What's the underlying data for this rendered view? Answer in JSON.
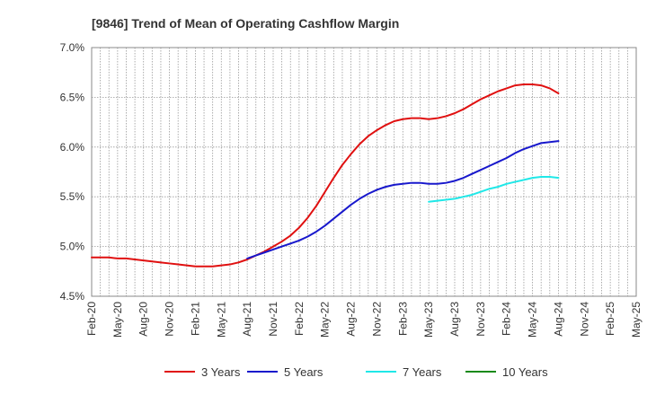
{
  "chart_data": {
    "type": "line",
    "title": "[9846]  Trend of Mean of Operating Cashflow Margin",
    "xlabel": "",
    "ylabel": "",
    "ylim": [
      4.5,
      7.0
    ],
    "y_ticks": [
      4.5,
      5.0,
      5.5,
      6.0,
      6.5,
      7.0
    ],
    "y_tick_labels": [
      "4.5%",
      "5.0%",
      "5.5%",
      "6.0%",
      "6.5%",
      "7.0%"
    ],
    "x_tick_labels": [
      "Feb-20",
      "May-20",
      "Aug-20",
      "Nov-20",
      "Feb-21",
      "May-21",
      "Aug-21",
      "Nov-21",
      "Feb-22",
      "May-22",
      "Aug-22",
      "Nov-22",
      "Feb-23",
      "May-23",
      "Aug-23",
      "Nov-23",
      "Feb-24",
      "May-24",
      "Aug-24",
      "Nov-24",
      "Feb-25",
      "May-25"
    ],
    "grid": true,
    "legend_position": "bottom",
    "series": [
      {
        "name": "3 Years",
        "color": "#e01010",
        "start_index": 0,
        "values": [
          4.89,
          4.89,
          4.89,
          4.88,
          4.88,
          4.87,
          4.86,
          4.85,
          4.84,
          4.83,
          4.82,
          4.81,
          4.8,
          4.8,
          4.8,
          4.81,
          4.82,
          4.84,
          4.87,
          4.91,
          4.95,
          5.0,
          5.05,
          5.11,
          5.19,
          5.29,
          5.41,
          5.55,
          5.69,
          5.82,
          5.93,
          6.03,
          6.11,
          6.17,
          6.22,
          6.26,
          6.28,
          6.29,
          6.29,
          6.28,
          6.29,
          6.31,
          6.34,
          6.38,
          6.43,
          6.48,
          6.52,
          6.56,
          6.59,
          6.62,
          6.63,
          6.63,
          6.62,
          6.59,
          6.54
        ]
      },
      {
        "name": "5 Years",
        "color": "#1818cc",
        "start_index": 18,
        "values": [
          4.88,
          4.91,
          4.94,
          4.97,
          5.0,
          5.03,
          5.06,
          5.1,
          5.15,
          5.21,
          5.28,
          5.35,
          5.42,
          5.48,
          5.53,
          5.57,
          5.6,
          5.62,
          5.63,
          5.64,
          5.64,
          5.63,
          5.63,
          5.64,
          5.66,
          5.69,
          5.73,
          5.77,
          5.81,
          5.85,
          5.89,
          5.94,
          5.98,
          6.01,
          6.04,
          6.05,
          6.06
        ]
      },
      {
        "name": "7 Years",
        "color": "#20e8e8",
        "start_index": 39,
        "values": [
          5.45,
          5.46,
          5.47,
          5.48,
          5.5,
          5.52,
          5.55,
          5.58,
          5.6,
          5.63,
          5.65,
          5.67,
          5.69,
          5.7,
          5.7,
          5.69
        ]
      },
      {
        "name": "10 Years",
        "color": "#1a8a1a",
        "start_index": 0,
        "values": []
      }
    ]
  }
}
